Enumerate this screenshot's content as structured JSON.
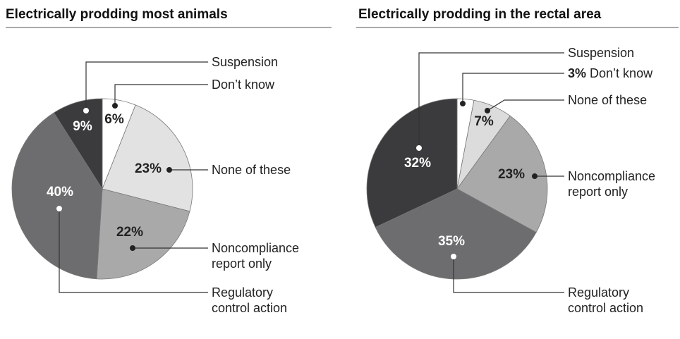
{
  "chart_data": [
    {
      "type": "pie",
      "title": "Electrically prodding most animals",
      "categories": [
        "Don’t know",
        "None of these",
        "Noncompliance report only",
        "Regulatory control action",
        "Suspension"
      ],
      "values": [
        6,
        23,
        22,
        40,
        9
      ],
      "value_labels": [
        "6%",
        "23%",
        "22%",
        "40%",
        "9%"
      ],
      "colors": [
        "#ffffff",
        "#e2e2e2",
        "#a9a9a9",
        "#6d6d6f",
        "#3b3b3d"
      ]
    },
    {
      "type": "pie",
      "title": "Electrically prodding in the rectal area",
      "categories": [
        "Don’t know",
        "None of these",
        "Noncompliance report only",
        "Regulatory control action",
        "Suspension"
      ],
      "values": [
        3,
        7,
        23,
        35,
        32
      ],
      "value_labels": [
        "3%",
        "7%",
        "23%",
        "35%",
        "32%"
      ],
      "colors": [
        "#ffffff",
        "#dcdcdc",
        "#a9a9a9",
        "#6d6d6f",
        "#3b3b3d"
      ]
    }
  ]
}
